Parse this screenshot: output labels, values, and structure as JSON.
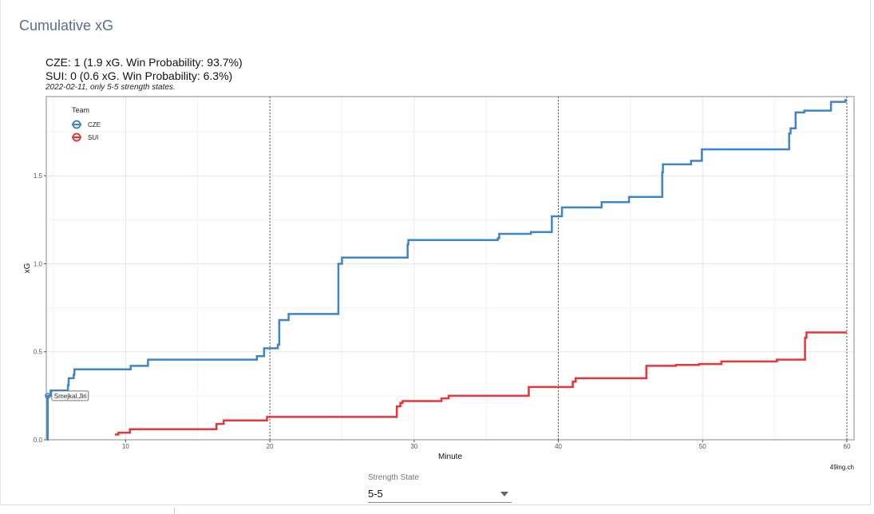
{
  "page": {
    "title": "Cumulative xG"
  },
  "control": {
    "label": "Strength State",
    "value": "5-5"
  },
  "chart_data": {
    "type": "line",
    "step": true,
    "title_lines": [
      "CZE: 1 (1.9 xG. Win Probability: 93.7%)",
      "SUI: 0 (0.6 xG. Win Probability: 6.3%)"
    ],
    "subtitle": "2022-02-11, only 5-5 strength states.",
    "xlabel": "Minute",
    "ylabel": "xG",
    "xlim": [
      4.5,
      60.5
    ],
    "ylim": [
      0,
      1.95
    ],
    "xticks": [
      10,
      20,
      30,
      40,
      50,
      60
    ],
    "yticks": [
      0.0,
      0.5,
      1.0,
      1.5
    ],
    "ytick_labels": [
      "0.0",
      "0.5",
      "1.0",
      "1.5"
    ],
    "period_lines": [
      20,
      40,
      60
    ],
    "grid": true,
    "legend": {
      "title": "Team",
      "position": "top-left",
      "entries": [
        "CZE",
        "SUI"
      ]
    },
    "annotation": {
      "text": "Smejkal.Jiri",
      "x": 4.6,
      "y": 0.25
    },
    "caption": "49ing.ch",
    "series": [
      {
        "name": "CZE",
        "color": "#3f85c6",
        "points": [
          [
            4.55,
            0
          ],
          [
            4.6,
            0.25
          ],
          [
            4.8,
            0.28
          ],
          [
            6.0,
            0.31
          ],
          [
            6.05,
            0.35
          ],
          [
            6.4,
            0.37
          ],
          [
            6.45,
            0.4
          ],
          [
            10.35,
            0.42
          ],
          [
            11.55,
            0.455
          ],
          [
            19.1,
            0.475
          ],
          [
            19.6,
            0.52
          ],
          [
            20.55,
            0.54
          ],
          [
            20.65,
            0.68
          ],
          [
            21.3,
            0.715
          ],
          [
            24.75,
            1.0
          ],
          [
            25.0,
            1.035
          ],
          [
            29.55,
            1.11
          ],
          [
            29.6,
            1.135
          ],
          [
            35.8,
            1.145
          ],
          [
            35.9,
            1.17
          ],
          [
            38.1,
            1.18
          ],
          [
            39.55,
            1.27
          ],
          [
            40.25,
            1.32
          ],
          [
            43.0,
            1.35
          ],
          [
            44.9,
            1.38
          ],
          [
            47.2,
            1.52
          ],
          [
            47.25,
            1.565
          ],
          [
            49.2,
            1.585
          ],
          [
            49.95,
            1.65
          ],
          [
            56.0,
            1.74
          ],
          [
            56.1,
            1.77
          ],
          [
            56.45,
            1.86
          ],
          [
            57.05,
            1.87
          ],
          [
            58.9,
            1.92
          ],
          [
            59.9,
            1.93
          ],
          [
            60.0,
            1.93
          ]
        ]
      },
      {
        "name": "SUI",
        "color": "#e8353a",
        "points": [
          [
            9.25,
            0.03
          ],
          [
            9.5,
            0.04
          ],
          [
            10.3,
            0.06
          ],
          [
            16.3,
            0.09
          ],
          [
            16.8,
            0.11
          ],
          [
            19.8,
            0.13
          ],
          [
            28.8,
            0.19
          ],
          [
            29.05,
            0.21
          ],
          [
            29.2,
            0.22
          ],
          [
            31.9,
            0.235
          ],
          [
            32.4,
            0.25
          ],
          [
            37.95,
            0.3
          ],
          [
            41.0,
            0.33
          ],
          [
            41.2,
            0.35
          ],
          [
            46.1,
            0.42
          ],
          [
            48.15,
            0.425
          ],
          [
            49.75,
            0.43
          ],
          [
            51.3,
            0.445
          ],
          [
            55.15,
            0.455
          ],
          [
            57.1,
            0.58
          ],
          [
            57.2,
            0.61
          ],
          [
            60.0,
            0.61
          ]
        ]
      }
    ]
  }
}
